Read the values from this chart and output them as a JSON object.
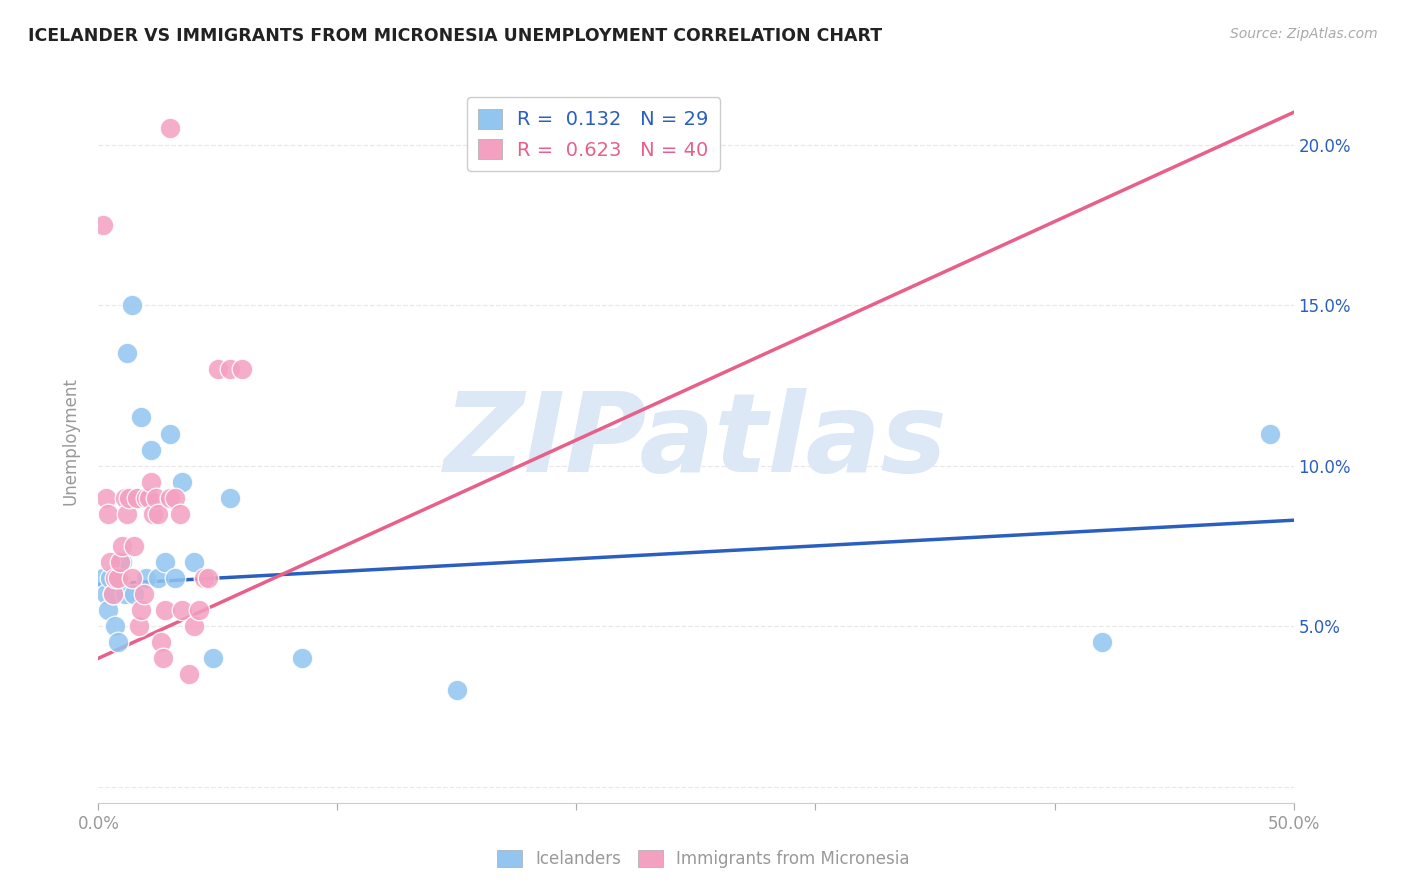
{
  "title": "ICELANDER VS IMMIGRANTS FROM MICRONESIA UNEMPLOYMENT CORRELATION CHART",
  "source": "Source: ZipAtlas.com",
  "xlim": [
    0,
    0.5
  ],
  "ylim": [
    -0.005,
    0.22
  ],
  "icelanders": {
    "label": "Icelanders",
    "R": 0.132,
    "N": 29,
    "color": "#92C5F0",
    "x": [
      0.002,
      0.003,
      0.004,
      0.005,
      0.006,
      0.007,
      0.008,
      0.009,
      0.01,
      0.011,
      0.012,
      0.014,
      0.015,
      0.016,
      0.018,
      0.02,
      0.022,
      0.025,
      0.028,
      0.03,
      0.032,
      0.035,
      0.04,
      0.048,
      0.055,
      0.085,
      0.15,
      0.42,
      0.49
    ],
    "y": [
      0.065,
      0.06,
      0.055,
      0.065,
      0.06,
      0.05,
      0.045,
      0.065,
      0.07,
      0.06,
      0.135,
      0.15,
      0.06,
      0.09,
      0.115,
      0.065,
      0.105,
      0.065,
      0.07,
      0.11,
      0.065,
      0.095,
      0.07,
      0.04,
      0.09,
      0.04,
      0.03,
      0.045,
      0.11
    ]
  },
  "micronesia": {
    "label": "Immigrants from Micronesia",
    "R": 0.623,
    "N": 40,
    "color": "#F4A0C0",
    "x": [
      0.002,
      0.003,
      0.004,
      0.005,
      0.006,
      0.007,
      0.008,
      0.009,
      0.01,
      0.011,
      0.012,
      0.013,
      0.014,
      0.015,
      0.016,
      0.017,
      0.018,
      0.019,
      0.02,
      0.021,
      0.022,
      0.023,
      0.024,
      0.025,
      0.026,
      0.027,
      0.028,
      0.03,
      0.032,
      0.034,
      0.035,
      0.038,
      0.04,
      0.042,
      0.044,
      0.046,
      0.05,
      0.055,
      0.06,
      0.03
    ],
    "y": [
      0.175,
      0.09,
      0.085,
      0.07,
      0.06,
      0.065,
      0.065,
      0.07,
      0.075,
      0.09,
      0.085,
      0.09,
      0.065,
      0.075,
      0.09,
      0.05,
      0.055,
      0.06,
      0.09,
      0.09,
      0.095,
      0.085,
      0.09,
      0.085,
      0.045,
      0.04,
      0.055,
      0.09,
      0.09,
      0.085,
      0.055,
      0.035,
      0.05,
      0.055,
      0.065,
      0.065,
      0.13,
      0.13,
      0.13,
      0.205
    ]
  },
  "icelander_line": {
    "x0": 0.0,
    "y0": 0.063,
    "x1": 0.5,
    "y1": 0.083
  },
  "micronesia_line": {
    "x0": 0.0,
    "y0": 0.04,
    "x1": 0.5,
    "y1": 0.21
  },
  "watermark": "ZIPatlas",
  "watermark_color": "#dce8f5",
  "background_color": "#ffffff",
  "grid_color": "#e8e8e8",
  "icelander_line_color": "#2B5FBF",
  "micronesia_line_color": "#E8608A",
  "right_axis_color": "#2B5FBF",
  "text_color": "#999999"
}
